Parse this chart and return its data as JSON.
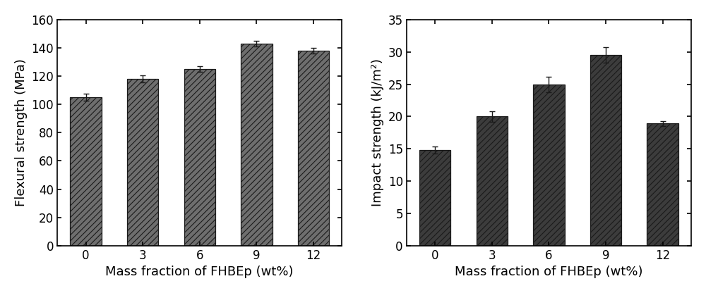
{
  "categories": [
    "0",
    "3",
    "6",
    "9",
    "12"
  ],
  "flexural_values": [
    105,
    118,
    125,
    143,
    138
  ],
  "flexural_errors": [
    2.5,
    2.5,
    2.0,
    1.8,
    2.0
  ],
  "flexural_ylabel": "Flexural strength (MPa)",
  "flexural_ylim": [
    0,
    160
  ],
  "flexural_yticks": [
    0,
    20,
    40,
    60,
    80,
    100,
    120,
    140,
    160
  ],
  "impact_values": [
    14.8,
    20.0,
    24.9,
    29.5,
    18.9
  ],
  "impact_errors": [
    0.5,
    0.8,
    1.2,
    1.2,
    0.4
  ],
  "impact_ylabel": "Impact strength (kJ/m²)",
  "impact_ylim": [
    0,
    35
  ],
  "impact_yticks": [
    0,
    5,
    10,
    15,
    20,
    25,
    30,
    35
  ],
  "xlabel": "Mass fraction of FHBEp (wt%)",
  "bar_color_left": "#6e6e6e",
  "bar_color_right": "#3c3c3c",
  "hatch_left": "////",
  "hatch_right": "////",
  "bar_width": 0.55,
  "edge_color": "#1a1a1a",
  "xlabel_fontsize": 13,
  "ylabel_fontsize": 13,
  "tick_fontsize": 12,
  "figure_bgcolor": "#ffffff"
}
